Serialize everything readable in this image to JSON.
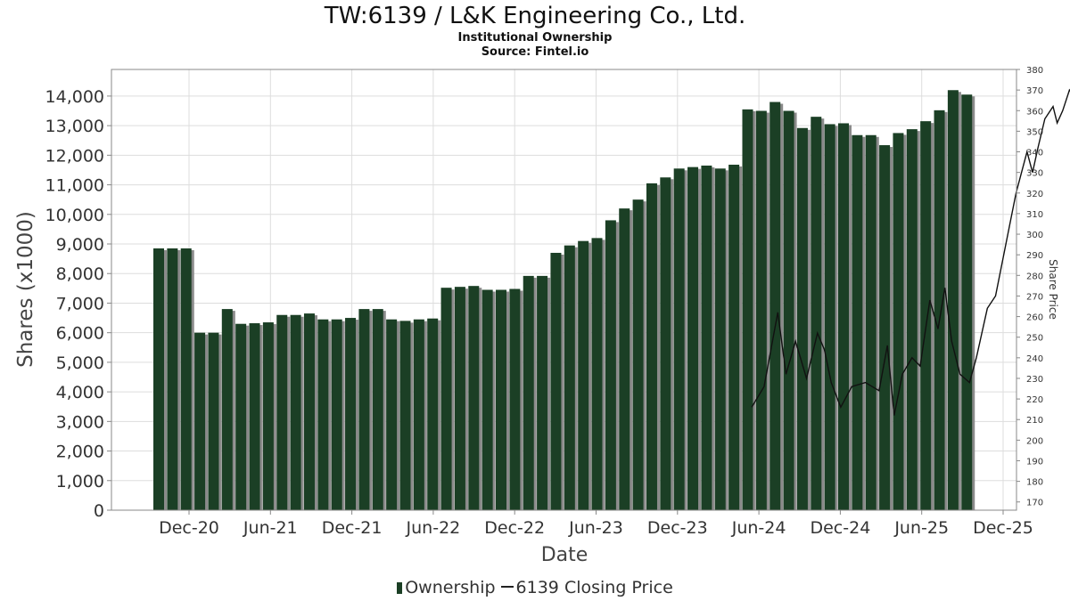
{
  "chart_data": {
    "type": "bar",
    "title": "TW:6139 / L&K Engineering Co., Ltd.",
    "subtitle": "Institutional Ownership",
    "source": "Source: Fintel.io",
    "xlabel": "Date",
    "ylabel": "Shares (x1000)",
    "y2label": "Share Price",
    "ylim": [
      0,
      14900
    ],
    "y2lim": [
      166,
      380
    ],
    "yticks": [
      "0",
      "1,000",
      "2,000",
      "3,000",
      "4,000",
      "5,000",
      "6,000",
      "7,000",
      "8,000",
      "9,000",
      "10,000",
      "11,000",
      "12,000",
      "13,000",
      "14,000"
    ],
    "y2ticks": [
      "170",
      "180",
      "190",
      "200",
      "210",
      "220",
      "230",
      "240",
      "250",
      "260",
      "270",
      "280",
      "290",
      "300",
      "310",
      "320",
      "330",
      "340",
      "350",
      "360",
      "370",
      "380"
    ],
    "xticks": [
      "Dec-20",
      "Jun-21",
      "Dec-21",
      "Jun-22",
      "Dec-22",
      "Jun-23",
      "Dec-23",
      "Jun-24",
      "Dec-24",
      "Jun-25",
      "Dec-25"
    ],
    "grid": true,
    "legend_position": "bottom",
    "bar_color": "#1b3f25",
    "line_color": "#111111",
    "series": [
      {
        "name": "Ownership",
        "values": [
          8850,
          8850,
          8850,
          6000,
          6000,
          6800,
          6300,
          6320,
          6350,
          6600,
          6600,
          6650,
          6450,
          6450,
          6500,
          6800,
          6800,
          6450,
          6400,
          6450,
          6480,
          7520,
          7550,
          7580,
          7450,
          7450,
          7480,
          7920,
          7920,
          8700,
          8950,
          9100,
          9200,
          9800,
          10200,
          10500,
          11050,
          11250,
          11550,
          11600,
          11650,
          11550,
          11680,
          13550,
          13500,
          13800,
          13500,
          12920,
          13300,
          13050,
          13080,
          12680,
          12680,
          12340,
          12750,
          12880,
          13150,
          13520,
          14200,
          14050
        ]
      },
      {
        "name": "6139 Closing Price",
        "points": [
          [
            0,
            0
          ],
          [
            0,
            0
          ]
        ],
        "visible_segments": [
          [
            [
              43.3,
              216
            ],
            [
              44.2,
              226
            ],
            [
              45.2,
              262
            ],
            [
              45.8,
              232
            ],
            [
              46.5,
              248
            ],
            [
              47.3,
              230
            ],
            [
              48.1,
              252
            ],
            [
              48.6,
              244
            ],
            [
              49.1,
              228
            ],
            [
              49.8,
              216
            ],
            [
              50.6,
              226
            ],
            [
              51.6,
              228
            ],
            [
              52.6,
              224
            ],
            [
              53.2,
              246
            ],
            [
              53.7,
              212
            ],
            [
              54.3,
              232
            ],
            [
              55.0,
              240
            ],
            [
              55.6,
              236
            ],
            [
              56.3,
              268
            ],
            [
              56.9,
              254
            ],
            [
              57.4,
              274
            ],
            [
              57.9,
              248
            ],
            [
              58.5,
              232
            ],
            [
              59.2,
              228
            ],
            [
              59.7,
              240
            ],
            [
              60.5,
              264
            ],
            [
              61.1,
              270
            ],
            [
              62.0,
              300
            ],
            [
              62.6,
              320
            ],
            [
              63.4,
              340
            ],
            [
              63.8,
              330
            ],
            [
              64.2,
              342
            ],
            [
              64.7,
              356
            ],
            [
              65.3,
              362
            ],
            [
              65.6,
              354
            ],
            [
              66.0,
              360
            ],
            [
              66.5,
              370
            ],
            [
              67.0,
              366
            ],
            [
              67.6,
              372
            ]
          ]
        ]
      }
    ]
  },
  "legend": {
    "items": [
      {
        "label": "Ownership"
      },
      {
        "label": "6139 Closing Price"
      }
    ]
  }
}
